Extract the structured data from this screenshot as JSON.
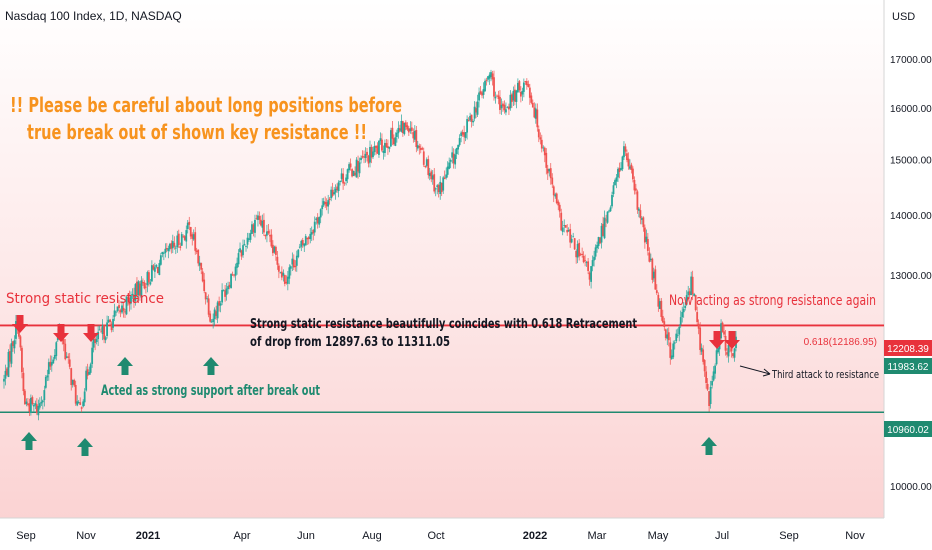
{
  "header": {
    "symbol_title": "Nasdaq 100 Index, 1D, NASDAQ"
  },
  "price_axis": {
    "currency": "USD",
    "tick_labels": [
      "17000.00",
      "16000.00",
      "15000.00",
      "14000.00",
      "13000.00",
      "10000.00"
    ],
    "tick_values": [
      17000,
      16000,
      15000,
      14000,
      13000,
      10000
    ]
  },
  "time_axis": {
    "labels": [
      "Sep",
      "Nov",
      "2021",
      "Apr",
      "Jun",
      "Aug",
      "Oct",
      "2022",
      "Mar",
      "May",
      "Jul",
      "Sep",
      "Nov"
    ],
    "bold_labels": [
      "2021",
      "2022"
    ]
  },
  "levels": {
    "resistance": {
      "value": 12208.39,
      "label": "12208.39",
      "color": "#e8323c"
    },
    "support": {
      "value": 10960.02,
      "label": "10960.02",
      "color": "#1f8a70"
    },
    "current": {
      "value": 11983.62,
      "label": "11983.62",
      "color": "#1f8a70"
    },
    "fib": {
      "value": 12186.95,
      "label": "0.618(12186.95)"
    }
  },
  "annotations": {
    "warning_line1": "!! Please be careful about long positions before",
    "warning_line2": "true break out of shown key resistance !!",
    "strong_static": "Strong static resistance",
    "support_text": "Acted as strong support after break out",
    "coincide_line1": "Strong static resistance beautifully coincides with 0.618 Retracement",
    "coincide_line2": "of drop from 12897.63 to 11311.05",
    "now_acting": "Now acting as strong resistance again",
    "third_attack": "Third attack to resistance"
  },
  "colors": {
    "bull": "#26a69a",
    "bear": "#ef5350",
    "warning": "#f7931e",
    "annotation_red": "#e8323c",
    "annotation_green": "#1f8a70"
  },
  "chart_data": {
    "type": "candlestick",
    "title": "Nasdaq 100 Index, 1D, NASDAQ",
    "ylabel": "USD",
    "y_scale": "log",
    "ylim": [
      9750,
      17900
    ],
    "x_ticks": [
      "Sep",
      "Nov",
      "2021",
      "Apr",
      "Jun",
      "Aug",
      "Oct",
      "2022",
      "Mar",
      "May",
      "Jul",
      "Sep",
      "Nov"
    ],
    "approx_closes": [
      {
        "date": "2020-08-20",
        "close": 11400
      },
      {
        "date": "2020-09-02",
        "close": 12300
      },
      {
        "date": "2020-09-08",
        "close": 11100
      },
      {
        "date": "2020-09-21",
        "close": 11000
      },
      {
        "date": "2020-10-12",
        "close": 12150
      },
      {
        "date": "2020-10-30",
        "close": 10950
      },
      {
        "date": "2020-11-12",
        "close": 11900
      },
      {
        "date": "2020-12-01",
        "close": 12300
      },
      {
        "date": "2020-12-31",
        "close": 12890
      },
      {
        "date": "2021-02-12",
        "close": 13800
      },
      {
        "date": "2021-03-04",
        "close": 12300
      },
      {
        "date": "2021-04-16",
        "close": 14000
      },
      {
        "date": "2021-05-12",
        "close": 12950
      },
      {
        "date": "2021-07-01",
        "close": 14600
      },
      {
        "date": "2021-09-07",
        "close": 15700
      },
      {
        "date": "2021-10-04",
        "close": 14400
      },
      {
        "date": "2021-11-22",
        "close": 16700
      },
      {
        "date": "2021-12-01",
        "close": 15900
      },
      {
        "date": "2021-12-27",
        "close": 16550
      },
      {
        "date": "2022-01-27",
        "close": 13900
      },
      {
        "date": "2022-02-24",
        "close": 13000
      },
      {
        "date": "2022-03-29",
        "close": 15200
      },
      {
        "date": "2022-05-12",
        "close": 11750
      },
      {
        "date": "2022-05-31",
        "close": 12900
      },
      {
        "date": "2022-06-16",
        "close": 11100
      },
      {
        "date": "2022-06-28",
        "close": 12150
      },
      {
        "date": "2022-07-06",
        "close": 11750
      },
      {
        "date": "2022-07-12",
        "close": 11983.62
      }
    ],
    "horizontal_lines": [
      {
        "name": "resistance",
        "value": 12208.39
      },
      {
        "name": "support",
        "value": 10960.02
      },
      {
        "name": "0.618 retracement",
        "value": 12186.95
      }
    ]
  }
}
